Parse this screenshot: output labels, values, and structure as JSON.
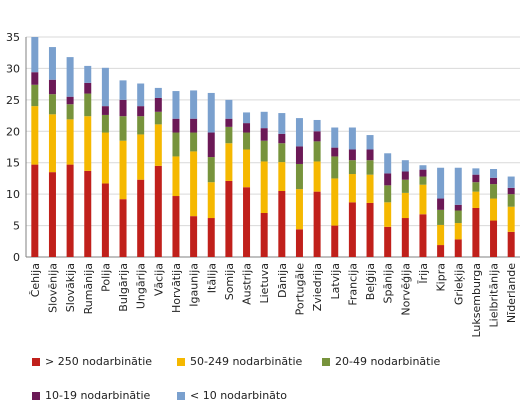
{
  "chart_data": {
    "type": "bar",
    "stacked": true,
    "ylim": [
      0,
      35
    ],
    "yticks": [
      0,
      5,
      10,
      15,
      20,
      25,
      30,
      35
    ],
    "grid": true,
    "legend_position": "bottom",
    "categories": [
      "Čehija",
      "Slovēnija",
      "Slovākija",
      "Rumānija",
      "Polija",
      "Bulgārija",
      "Ungārija",
      "Vācija",
      "Horvātija",
      "Igaunija",
      "Itālija",
      "Somija",
      "Austrija",
      "Lietuva",
      "Dānija",
      "Portugāle",
      "Zviedrija",
      "Latvija",
      "Francija",
      "Beļģija",
      "Spānija",
      "Norvēģija",
      "Īrija",
      "Kipra",
      "Grieķija",
      "Luksemburga",
      "Lielbritānija",
      "Nīderlande"
    ],
    "series": [
      {
        "name": "> 250 nodarbinātie",
        "color": "#c0201b",
        "values": [
          14.7,
          13.5,
          14.7,
          13.7,
          11.7,
          9.2,
          12.3,
          14.5,
          9.7,
          6.5,
          6.2,
          12.1,
          11.1,
          7.0,
          10.5,
          4.4,
          10.4,
          5.0,
          8.7,
          8.6,
          4.8,
          6.2,
          6.8,
          1.9,
          2.8,
          7.8,
          5.8,
          4.0
        ]
      },
      {
        "name": "50-249 nodarbinātie",
        "color": "#f5b800",
        "values": [
          9.3,
          9.2,
          7.2,
          8.7,
          8.1,
          9.3,
          7.2,
          6.6,
          6.3,
          10.3,
          5.7,
          6.0,
          6.0,
          8.2,
          4.6,
          6.4,
          4.8,
          7.5,
          4.5,
          4.5,
          3.9,
          4.0,
          4.7,
          3.2,
          2.6,
          2.6,
          3.5,
          4.0
        ]
      },
      {
        "name": "20-49 nodarbinātie",
        "color": "#77933c",
        "values": [
          3.4,
          3.2,
          2.4,
          3.6,
          2.8,
          3.9,
          2.9,
          2.0,
          3.8,
          3.0,
          4.0,
          2.6,
          2.7,
          3.3,
          3.0,
          4.0,
          3.2,
          3.5,
          2.2,
          2.3,
          2.7,
          2.1,
          1.3,
          2.4,
          2.0,
          1.5,
          2.3,
          2.0
        ]
      },
      {
        "name": "10-19 nodarbinātie",
        "color": "#6b1956",
        "values": [
          2.0,
          2.3,
          1.2,
          1.7,
          1.4,
          2.6,
          1.6,
          2.2,
          2.2,
          2.2,
          3.9,
          1.3,
          1.5,
          2.0,
          1.5,
          2.8,
          1.6,
          1.4,
          1.7,
          1.7,
          1.9,
          1.3,
          1.1,
          1.8,
          0.9,
          1.2,
          1.0,
          1.0
        ]
      },
      {
        "name": "< 10 nodarbināto",
        "color": "#7aa0ce",
        "values": [
          5.6,
          5.2,
          6.3,
          2.7,
          6.1,
          3.1,
          3.6,
          1.6,
          4.4,
          4.5,
          6.3,
          3.0,
          1.7,
          2.6,
          3.3,
          4.5,
          1.8,
          3.2,
          3.5,
          2.3,
          3.2,
          1.8,
          0.7,
          4.9,
          5.9,
          1.0,
          1.4,
          1.8
        ]
      }
    ]
  }
}
